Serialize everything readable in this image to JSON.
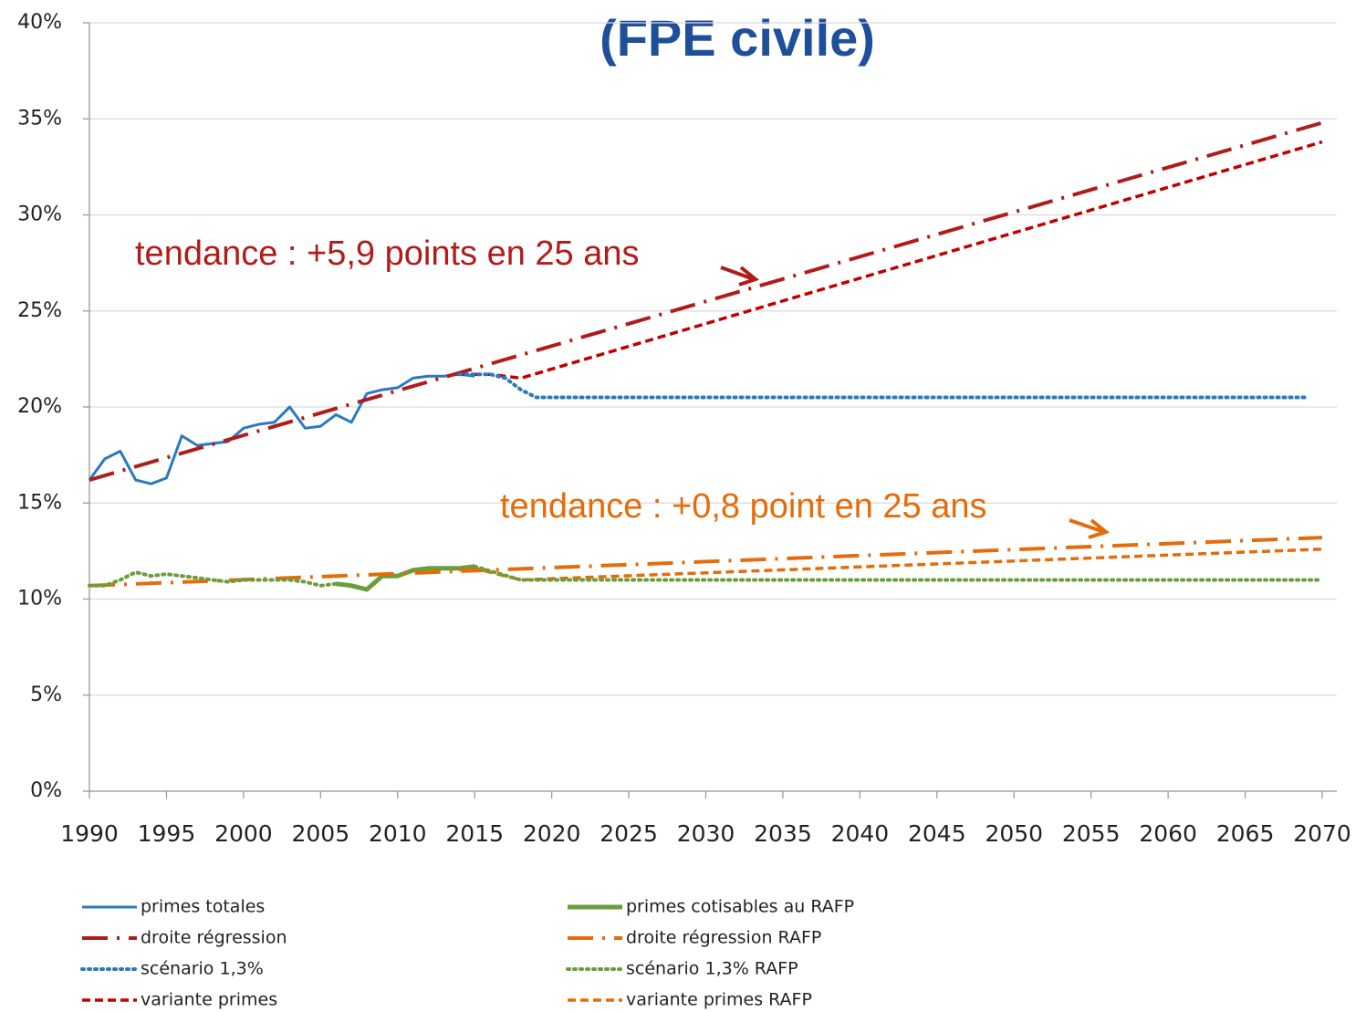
{
  "chart_data": {
    "type": "line",
    "title": "(FPE civile)",
    "annotations": [
      {
        "text": "tendance : +5,9 points en 25 ans"
      },
      {
        "text": "tendance : +0,8 point en 25 ans"
      }
    ],
    "xlim": [
      1990,
      2070
    ],
    "xticks": [
      1990,
      1995,
      2000,
      2005,
      2010,
      2015,
      2020,
      2025,
      2030,
      2035,
      2040,
      2045,
      2050,
      2055,
      2060,
      2065,
      2070
    ],
    "ylim": [
      0,
      40
    ],
    "yticks": [
      {
        "value": 0,
        "label": "0%"
      },
      {
        "value": 5,
        "label": "5%"
      },
      {
        "value": 10,
        "label": "10%"
      },
      {
        "value": 15,
        "label": "15%"
      },
      {
        "value": 20,
        "label": "20%"
      },
      {
        "value": 25,
        "label": "25%"
      },
      {
        "value": 30,
        "label": "30%"
      },
      {
        "value": 35,
        "label": "35%"
      },
      {
        "value": 40,
        "label": "40%"
      }
    ],
    "grid": true,
    "series": [
      {
        "name": "primes totales",
        "color": "#2a7ac0",
        "dash": "solid",
        "x": [
          1990,
          1991,
          1992,
          1993,
          1994,
          1995,
          1996,
          1997,
          1998,
          1999,
          2000,
          2001,
          2002,
          2003,
          2004,
          2005,
          2006,
          2007,
          2008,
          2009,
          2010,
          2011,
          2012,
          2013,
          2014,
          2015
        ],
        "values": [
          16.2,
          17.3,
          17.7,
          16.2,
          16.0,
          16.3,
          18.5,
          18.0,
          18.1,
          18.2,
          18.9,
          19.1,
          19.2,
          20.0,
          18.9,
          19.0,
          19.6,
          19.2,
          20.7,
          20.9,
          21.0,
          21.5,
          21.6,
          21.6,
          21.7,
          21.6
        ]
      },
      {
        "name": "droite régression",
        "color": "#b01c1c",
        "dash": "dashdot",
        "x": [
          1990,
          2070
        ],
        "values": [
          16.2,
          34.8
        ]
      },
      {
        "name": "scénario 1,3%",
        "color": "#2a7ac0",
        "dash": "dotted",
        "x": [
          2014,
          2016,
          2017,
          2018,
          2019,
          2069
        ],
        "values": [
          21.7,
          21.7,
          21.5,
          20.9,
          20.5,
          20.5
        ]
      },
      {
        "name": "variante primes",
        "color": "#c00000",
        "dash": "dashed",
        "x": [
          2014,
          2016,
          2018,
          2070
        ],
        "values": [
          21.7,
          21.7,
          21.5,
          33.8
        ]
      },
      {
        "name": "primes cotisables au RAFP",
        "color": "#6a9e3a",
        "dash": "thick",
        "x": [
          2006,
          2007,
          2008,
          2009,
          2010,
          2011,
          2012,
          2013,
          2014,
          2015
        ],
        "values": [
          10.8,
          10.7,
          10.5,
          11.2,
          11.2,
          11.5,
          11.6,
          11.6,
          11.6,
          11.7
        ]
      },
      {
        "name": "droite régression RAFP",
        "color": "#e46c0a",
        "dash": "dashdot",
        "x": [
          1990,
          2070
        ],
        "values": [
          10.7,
          13.2
        ]
      },
      {
        "name": "scénario 1,3% RAFP",
        "color": "#6a9e3a",
        "dash": "dotted",
        "x": [
          1990,
          1991,
          1992,
          1993,
          1994,
          1995,
          1996,
          1997,
          1998,
          1999,
          2000,
          2001,
          2002,
          2003,
          2004,
          2005,
          2006,
          2010,
          2015,
          2018,
          2070
        ],
        "values": [
          10.7,
          10.7,
          11.0,
          11.4,
          11.2,
          11.3,
          11.2,
          11.1,
          11.0,
          10.9,
          11.0,
          11.0,
          11.0,
          11.0,
          10.9,
          10.7,
          10.8,
          null,
          11.7,
          11.0,
          11.0
        ]
      },
      {
        "name": "variante primes RAFP",
        "color": "#e46c0a",
        "dash": "dashed",
        "x": [
          2014,
          2015,
          2018,
          2070
        ],
        "values": [
          11.5,
          11.6,
          11.0,
          12.6
        ]
      }
    ]
  }
}
